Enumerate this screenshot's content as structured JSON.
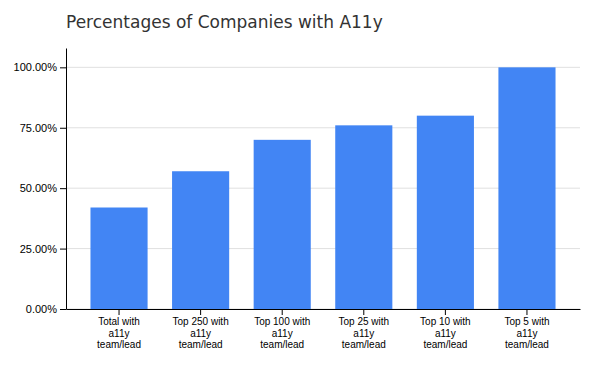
{
  "chart_data": {
    "type": "bar",
    "title": "Percentages of Companies with A11y",
    "categories": [
      "Total with\na11y\nteam/lead",
      "Top 250 with\na11y\nteam/lead",
      "Top 100 with\na11y\nteam/lead",
      "Top 25 with\na11y\nteam/lead",
      "Top 10 with\na11y\nteam/lead",
      "Top 5 with\na11y\nteam/lead"
    ],
    "values": [
      0.42,
      0.57,
      0.7,
      0.76,
      0.8,
      1.0
    ],
    "color": "#4285F4",
    "ylim": [
      0,
      1.08
    ],
    "yticks": [
      {
        "value": 0.0,
        "label": "0.00%"
      },
      {
        "value": 0.25,
        "label": "25.00%"
      },
      {
        "value": 0.5,
        "label": "50.00%"
      },
      {
        "value": 0.75,
        "label": "75.00%"
      },
      {
        "value": 1.0,
        "label": "100.00%"
      }
    ],
    "grid": true
  }
}
